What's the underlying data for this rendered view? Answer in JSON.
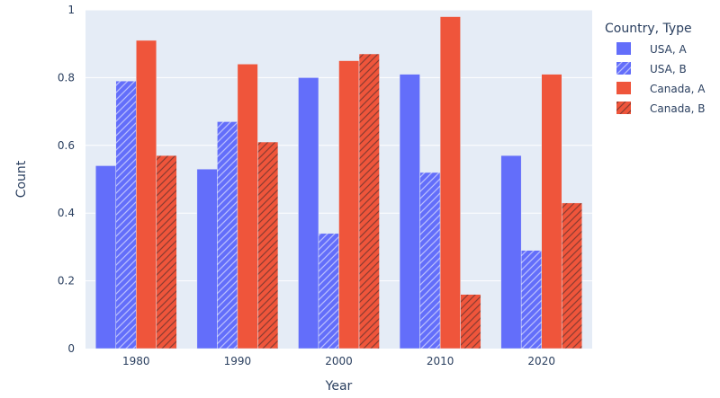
{
  "chart_data": {
    "type": "bar",
    "title": "",
    "xlabel": "Year",
    "ylabel": "Count",
    "ylim": [
      0,
      1.0
    ],
    "yticks": [
      0,
      0.2,
      0.4,
      0.6,
      0.8,
      1
    ],
    "ytick_labels": [
      "0",
      "0.2",
      "0.4",
      "0.6",
      "0.8",
      "1"
    ],
    "categories": [
      "1980",
      "1990",
      "2000",
      "2010",
      "2020"
    ],
    "grid": true,
    "legend": {
      "title": "Country, Type",
      "placement": "right"
    },
    "series": [
      {
        "name": "USA, A",
        "values": [
          0.54,
          0.53,
          0.8,
          0.81,
          0.57
        ],
        "color": "#636efa",
        "pattern": "none"
      },
      {
        "name": "USA, B",
        "values": [
          0.79,
          0.67,
          0.34,
          0.52,
          0.29
        ],
        "color": "#636efa",
        "pattern": "diagonal"
      },
      {
        "name": "Canada, A",
        "values": [
          0.91,
          0.84,
          0.85,
          0.98,
          0.81
        ],
        "color": "#ef553b",
        "pattern": "none"
      },
      {
        "name": "Canada, B",
        "values": [
          0.57,
          0.61,
          0.87,
          0.16,
          0.43
        ],
        "color": "#ef553b",
        "pattern": "diagonal"
      }
    ],
    "colors": {
      "plot_background": "#e5ecf6",
      "grid": "#ffffff",
      "text": "#2a3f5f"
    }
  }
}
